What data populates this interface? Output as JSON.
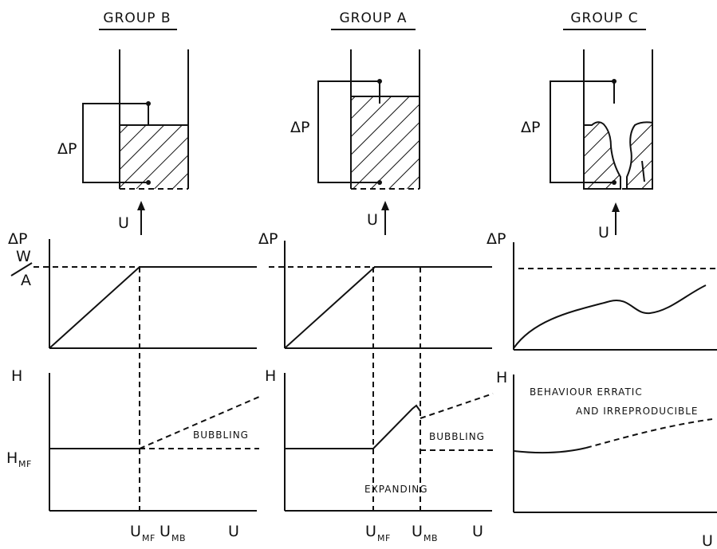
{
  "groups": {
    "b": {
      "title": "GROUP B",
      "delta_p": "ΔP",
      "u_arrow": "U",
      "chart_y": "ΔP",
      "wa_top": "W",
      "wa_bottom": "A",
      "h_y": "H",
      "hmf": "H",
      "hmf_sub": "MF",
      "bubbling": "BUBBLING",
      "umf": "U",
      "umf_sub": "MF",
      "umb": "U",
      "umb_sub": "MB",
      "x_axis": "U"
    },
    "a": {
      "title": "GROUP A",
      "delta_p": "ΔP",
      "u_arrow": "U",
      "chart_y": "ΔP",
      "h_y": "H",
      "bubbling": "BUBBLING",
      "expanding": "EXPANDING",
      "umf": "U",
      "umf_sub": "MF",
      "umb": "U",
      "umb_sub": "MB",
      "x_axis": "U"
    },
    "c": {
      "title": "GROUP C",
      "delta_p": "ΔP",
      "u_arrow": "U",
      "chart_y": "ΔP",
      "h_y": "H",
      "erratic_line1": "BEHAVIOUR ERRATIC",
      "erratic_line2": "AND IRREPRODUCIBLE",
      "x_axis": "U"
    }
  }
}
